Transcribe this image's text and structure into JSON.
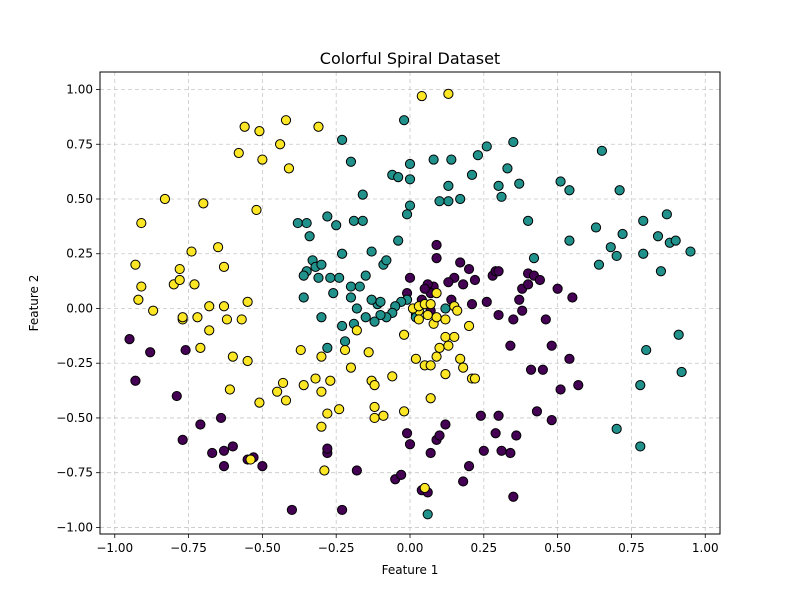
{
  "chart_data": {
    "type": "scatter",
    "title": "Colorful Spiral Dataset",
    "xlabel": "Feature 1",
    "ylabel": "Feature 2",
    "xlim": [
      -1.05,
      1.05
    ],
    "ylim": [
      -1.03,
      1.08
    ],
    "xticks": [
      -1.0,
      -0.75,
      -0.5,
      -0.25,
      0.0,
      0.25,
      0.5,
      0.75,
      1.0
    ],
    "xtick_labels": [
      "−1.00",
      "−0.75",
      "−0.50",
      "−0.25",
      "0.00",
      "0.25",
      "0.50",
      "0.75",
      "1.00"
    ],
    "yticks": [
      -1.0,
      -0.75,
      -0.5,
      -0.25,
      0.0,
      0.25,
      0.5,
      0.75,
      1.0
    ],
    "ytick_labels": [
      "−1.00",
      "−0.75",
      "−0.50",
      "−0.25",
      "0.00",
      "0.25",
      "0.50",
      "0.75",
      "1.00"
    ],
    "grid": true,
    "marker_edge_color": "#000000",
    "series": [
      {
        "color": "#440154",
        "points": [
          [
            -0.95,
            -0.14
          ],
          [
            -0.93,
            -0.33
          ],
          [
            -0.88,
            -0.2
          ],
          [
            -0.79,
            -0.4
          ],
          [
            -0.77,
            -0.6
          ],
          [
            -0.76,
            -0.19
          ],
          [
            -0.71,
            -0.53
          ],
          [
            -0.67,
            -0.66
          ],
          [
            -0.64,
            -0.5
          ],
          [
            -0.63,
            -0.72
          ],
          [
            -0.63,
            -0.65
          ],
          [
            -0.6,
            -0.63
          ],
          [
            -0.55,
            -0.69
          ],
          [
            -0.53,
            -0.68
          ],
          [
            -0.5,
            -0.72
          ],
          [
            -0.4,
            -0.92
          ],
          [
            -0.28,
            -0.66
          ],
          [
            -0.28,
            -0.64
          ],
          [
            -0.23,
            -0.92
          ],
          [
            -0.18,
            -0.74
          ],
          [
            -0.05,
            -0.78
          ],
          [
            -0.03,
            -0.76
          ],
          [
            -0.01,
            -0.57
          ],
          [
            0.0,
            -0.62
          ],
          [
            0.04,
            -0.83
          ],
          [
            0.06,
            -0.84
          ],
          [
            0.07,
            -0.66
          ],
          [
            0.09,
            -0.6
          ],
          [
            0.1,
            -0.58
          ],
          [
            0.12,
            -0.53
          ],
          [
            0.18,
            -0.79
          ],
          [
            0.2,
            -0.72
          ],
          [
            0.24,
            -0.49
          ],
          [
            0.25,
            -0.65
          ],
          [
            0.29,
            -0.57
          ],
          [
            0.3,
            -0.49
          ],
          [
            0.31,
            -0.65
          ],
          [
            0.34,
            -0.66
          ],
          [
            0.35,
            -0.86
          ],
          [
            0.36,
            -0.58
          ],
          [
            0.43,
            -0.47
          ],
          [
            0.48,
            -0.51
          ],
          [
            0.54,
            -0.23
          ],
          [
            0.51,
            -0.37
          ],
          [
            0.57,
            -0.35
          ],
          [
            0.41,
            -0.28
          ],
          [
            0.45,
            -0.28
          ],
          [
            0.48,
            -0.17
          ],
          [
            0.34,
            -0.17
          ],
          [
            0.3,
            -0.03
          ],
          [
            0.35,
            -0.05
          ],
          [
            0.38,
            -0.01
          ],
          [
            0.38,
            0.09
          ],
          [
            0.4,
            0.11
          ],
          [
            0.4,
            0.16
          ],
          [
            0.42,
            0.15
          ],
          [
            0.44,
            0.13
          ],
          [
            0.46,
            -0.05
          ],
          [
            0.5,
            0.09
          ],
          [
            0.55,
            0.05
          ],
          [
            0.37,
            0.04
          ],
          [
            0.28,
            0.15
          ],
          [
            0.29,
            0.17
          ],
          [
            0.3,
            0.17
          ],
          [
            0.26,
            0.03
          ],
          [
            0.21,
            0.02
          ],
          [
            0.22,
            0.13
          ],
          [
            0.2,
            0.18
          ],
          [
            0.18,
            0.11
          ],
          [
            0.15,
            0.14
          ],
          [
            0.14,
            0.04
          ],
          [
            0.13,
            0.12
          ],
          [
            0.09,
            0.23
          ],
          [
            0.09,
            0.29
          ],
          [
            0.08,
            0.1
          ],
          [
            0.06,
            0.11
          ],
          [
            0.07,
            0.07
          ],
          [
            0.05,
            0.09
          ],
          [
            0.04,
            0.04
          ],
          [
            0.0,
            0.14
          ],
          [
            -0.01,
            0.07
          ],
          [
            0.07,
            -0.01
          ],
          [
            0.02,
            -0.03
          ],
          [
            0.17,
            0.21
          ]
        ]
      },
      {
        "color": "#21918c",
        "points": [
          [
            0.06,
            -0.94
          ],
          [
            -0.02,
            0.86
          ],
          [
            0.12,
            0.0
          ],
          [
            0.05,
            0.02
          ],
          [
            0.02,
            -0.04
          ],
          [
            -0.01,
            0.04
          ],
          [
            -0.03,
            0.03
          ],
          [
            -0.05,
            0.01
          ],
          [
            -0.06,
            -0.02
          ],
          [
            -0.08,
            -0.04
          ],
          [
            -0.1,
            -0.03
          ],
          [
            -0.11,
            0.02
          ],
          [
            -0.12,
            -0.06
          ],
          [
            -0.15,
            -0.04
          ],
          [
            -0.18,
            0.0
          ],
          [
            -0.2,
            0.05
          ],
          [
            -0.19,
            -0.07
          ],
          [
            -0.23,
            -0.08
          ],
          [
            -0.22,
            -0.15
          ],
          [
            -0.28,
            -0.18
          ],
          [
            -0.3,
            -0.04
          ],
          [
            -0.26,
            0.07
          ],
          [
            -0.24,
            0.14
          ],
          [
            -0.2,
            0.1
          ],
          [
            -0.17,
            0.1
          ],
          [
            -0.15,
            0.15
          ],
          [
            -0.13,
            0.04
          ],
          [
            -0.1,
            0.03
          ],
          [
            -0.09,
            0.2
          ],
          [
            -0.08,
            0.22
          ],
          [
            -0.04,
            0.31
          ],
          [
            -0.01,
            0.43
          ],
          [
            0.0,
            0.47
          ],
          [
            -0.06,
            0.61
          ],
          [
            -0.04,
            0.6
          ],
          [
            0.0,
            0.59
          ],
          [
            0.0,
            0.66
          ],
          [
            0.08,
            0.68
          ],
          [
            0.14,
            0.68
          ],
          [
            0.13,
            0.56
          ],
          [
            0.13,
            0.49
          ],
          [
            0.17,
            0.5
          ],
          [
            0.1,
            0.49
          ],
          [
            0.21,
            0.61
          ],
          [
            0.23,
            0.7
          ],
          [
            0.26,
            0.74
          ],
          [
            0.3,
            0.56
          ],
          [
            0.31,
            0.51
          ],
          [
            0.33,
            0.64
          ],
          [
            0.35,
            0.76
          ],
          [
            0.37,
            0.57
          ],
          [
            0.4,
            0.4
          ],
          [
            0.42,
            0.23
          ],
          [
            0.51,
            0.58
          ],
          [
            0.54,
            0.54
          ],
          [
            0.54,
            0.31
          ],
          [
            0.63,
            0.37
          ],
          [
            0.64,
            0.2
          ],
          [
            0.65,
            0.72
          ],
          [
            0.68,
            0.28
          ],
          [
            0.7,
            0.24
          ],
          [
            0.71,
            0.54
          ],
          [
            0.72,
            0.34
          ],
          [
            0.79,
            0.4
          ],
          [
            0.79,
            0.25
          ],
          [
            0.84,
            0.33
          ],
          [
            0.85,
            0.17
          ],
          [
            0.87,
            0.43
          ],
          [
            0.88,
            0.3
          ],
          [
            0.9,
            0.31
          ],
          [
            0.95,
            0.26
          ],
          [
            0.91,
            -0.12
          ],
          [
            0.92,
            -0.29
          ],
          [
            0.8,
            -0.19
          ],
          [
            0.78,
            -0.35
          ],
          [
            0.78,
            -0.63
          ],
          [
            0.7,
            -0.55
          ],
          [
            -0.38,
            0.39
          ],
          [
            -0.35,
            0.39
          ],
          [
            -0.34,
            0.33
          ],
          [
            -0.35,
            0.17
          ],
          [
            -0.36,
            0.15
          ],
          [
            -0.33,
            0.22
          ],
          [
            -0.32,
            0.19
          ],
          [
            -0.3,
            0.2
          ],
          [
            -0.31,
            0.14
          ],
          [
            -0.28,
            0.42
          ],
          [
            -0.25,
            0.38
          ],
          [
            -0.23,
            0.77
          ],
          [
            -0.2,
            0.67
          ],
          [
            -0.19,
            0.4
          ],
          [
            -0.16,
            0.4
          ],
          [
            -0.16,
            0.52
          ],
          [
            -0.13,
            0.26
          ],
          [
            -0.36,
            0.05
          ],
          [
            -0.27,
            0.14
          ],
          [
            -0.23,
            0.25
          ]
        ]
      },
      {
        "color": "#fde725",
        "points": [
          [
            0.04,
            0.97
          ],
          [
            0.13,
            0.98
          ],
          [
            -0.83,
            0.5
          ],
          [
            -0.91,
            0.39
          ],
          [
            -0.93,
            0.2
          ],
          [
            -0.91,
            0.1
          ],
          [
            -0.92,
            0.04
          ],
          [
            -0.87,
            -0.01
          ],
          [
            -0.8,
            0.11
          ],
          [
            -0.78,
            0.18
          ],
          [
            -0.78,
            0.13
          ],
          [
            -0.74,
            0.26
          ],
          [
            -0.73,
            0.11
          ],
          [
            -0.7,
            0.48
          ],
          [
            -0.68,
            0.01
          ],
          [
            -0.65,
            0.28
          ],
          [
            -0.63,
            0.19
          ],
          [
            -0.63,
            0.01
          ],
          [
            -0.62,
            -0.05
          ],
          [
            -0.6,
            -0.22
          ],
          [
            -0.57,
            -0.05
          ],
          [
            -0.55,
            -0.24
          ],
          [
            -0.55,
            0.03
          ],
          [
            -0.52,
            0.45
          ],
          [
            -0.51,
            -0.43
          ],
          [
            -0.5,
            0.68
          ],
          [
            -0.51,
            0.81
          ],
          [
            -0.56,
            0.83
          ],
          [
            -0.58,
            0.71
          ],
          [
            -0.44,
            0.75
          ],
          [
            -0.42,
            0.86
          ],
          [
            -0.41,
            0.64
          ],
          [
            -0.31,
            0.83
          ],
          [
            -0.77,
            -0.05
          ],
          [
            -0.77,
            -0.04
          ],
          [
            -0.72,
            -0.04
          ],
          [
            -0.71,
            -0.18
          ],
          [
            -0.68,
            -0.1
          ],
          [
            -0.61,
            -0.37
          ],
          [
            -0.54,
            -0.69
          ],
          [
            -0.45,
            -0.38
          ],
          [
            -0.43,
            -0.34
          ],
          [
            -0.42,
            -0.42
          ],
          [
            -0.37,
            -0.19
          ],
          [
            -0.36,
            -0.35
          ],
          [
            -0.32,
            -0.32
          ],
          [
            -0.3,
            -0.22
          ],
          [
            -0.3,
            -0.38
          ],
          [
            -0.3,
            -0.54
          ],
          [
            -0.29,
            -0.74
          ],
          [
            -0.28,
            -0.48
          ],
          [
            -0.27,
            -0.33
          ],
          [
            -0.24,
            -0.46
          ],
          [
            -0.22,
            -0.19
          ],
          [
            -0.2,
            -0.27
          ],
          [
            -0.18,
            -0.1
          ],
          [
            -0.14,
            -0.2
          ],
          [
            -0.13,
            -0.33
          ],
          [
            -0.12,
            -0.35
          ],
          [
            -0.12,
            -0.45
          ],
          [
            -0.12,
            -0.5
          ],
          [
            -0.09,
            -0.49
          ],
          [
            -0.06,
            -0.31
          ],
          [
            -0.02,
            -0.47
          ],
          [
            -0.02,
            -0.12
          ],
          [
            0.02,
            -0.23
          ],
          [
            0.05,
            -0.26
          ],
          [
            0.07,
            -0.26
          ],
          [
            0.07,
            -0.41
          ],
          [
            0.09,
            -0.22
          ],
          [
            0.1,
            -0.18
          ],
          [
            0.12,
            -0.13
          ],
          [
            0.12,
            -0.3
          ],
          [
            0.13,
            -0.17
          ],
          [
            0.15,
            -0.13
          ],
          [
            0.17,
            -0.23
          ],
          [
            0.18,
            -0.27
          ],
          [
            0.2,
            -0.08
          ],
          [
            0.21,
            -0.32
          ],
          [
            0.22,
            -0.32
          ],
          [
            0.05,
            -0.82
          ],
          [
            0.08,
            -0.07
          ],
          [
            0.09,
            -0.04
          ],
          [
            0.06,
            -0.03
          ],
          [
            0.03,
            -0.01
          ],
          [
            0.01,
            0.0
          ],
          [
            0.03,
            -0.05
          ],
          [
            0.03,
            0.01
          ],
          [
            0.05,
            0.02
          ],
          [
            0.07,
            0.02
          ],
          [
            0.15,
            0.01
          ],
          [
            0.16,
            -0.01
          ],
          [
            0.09,
            0.07
          ],
          [
            0.12,
            -0.05
          ]
        ]
      }
    ]
  }
}
